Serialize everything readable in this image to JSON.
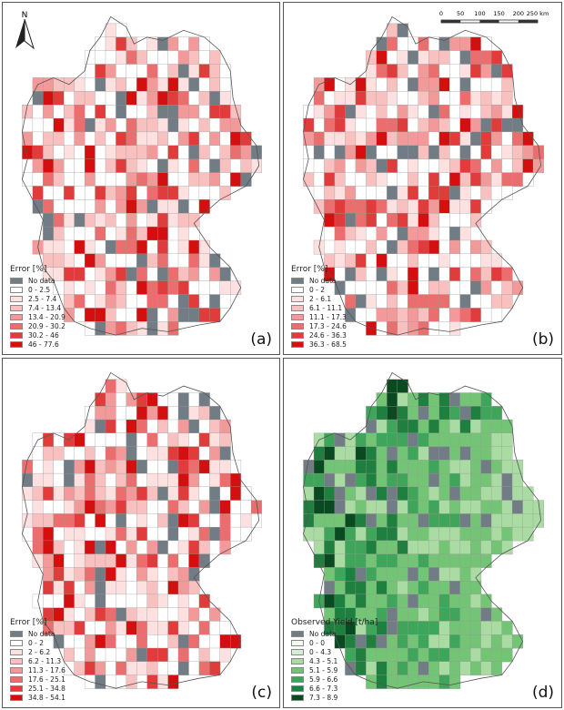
{
  "panels": [
    {
      "label": "(a)",
      "legend_title": "Error [%]",
      "legend": [
        {
          "label": "No data",
          "color": "#727c84"
        },
        {
          "label": "0 - 2.5",
          "color": "#ffffff"
        },
        {
          "label": "2.5 - 7.4",
          "color": "#fde0e0"
        },
        {
          "label": "7.4 - 13.4",
          "color": "#f9c0c0"
        },
        {
          "label": "13.4 - 20.9",
          "color": "#f29a9a"
        },
        {
          "label": "20.9 - 30.2",
          "color": "#ea6e6e"
        },
        {
          "label": "30.2 - 46",
          "color": "#e03c3c"
        },
        {
          "label": "46 - 77.6",
          "color": "#d40f0f"
        }
      ]
    },
    {
      "label": "(b)",
      "legend_title": "Error [%]",
      "legend": [
        {
          "label": "No data",
          "color": "#727c84"
        },
        {
          "label": "0 - 2",
          "color": "#ffffff"
        },
        {
          "label": "2 - 6.1",
          "color": "#fde0e0"
        },
        {
          "label": "6.1 - 11.1",
          "color": "#f9c0c0"
        },
        {
          "label": "11.1 - 17.3",
          "color": "#f29a9a"
        },
        {
          "label": "17.3 - 24.6",
          "color": "#ea6e6e"
        },
        {
          "label": "24.6 - 36.3",
          "color": "#e03c3c"
        },
        {
          "label": "36.3 - 68.5",
          "color": "#d40f0f"
        }
      ]
    },
    {
      "label": "(c)",
      "legend_title": "Error [%]",
      "legend": [
        {
          "label": "No data",
          "color": "#727c84"
        },
        {
          "label": "0 - 2",
          "color": "#ffffff"
        },
        {
          "label": "2 - 6.2",
          "color": "#fde0e0"
        },
        {
          "label": "6.2 - 11.3",
          "color": "#f9c0c0"
        },
        {
          "label": "11.3 - 17.6",
          "color": "#f29a9a"
        },
        {
          "label": "17.6 - 25.1",
          "color": "#ea6e6e"
        },
        {
          "label": "25.1 - 34.8",
          "color": "#e03c3c"
        },
        {
          "label": "34.8 - 54.1",
          "color": "#d40f0f"
        }
      ]
    },
    {
      "label": "(d)",
      "legend_title": "Observed Yield [t/ha]",
      "legend": [
        {
          "label": "No data",
          "color": "#727c84"
        },
        {
          "label": "0 - 0",
          "color": "#f3fbf1"
        },
        {
          "label": "0 - 4.3",
          "color": "#d6efd2"
        },
        {
          "label": "4.3 - 5.1",
          "color": "#a9dba3"
        },
        {
          "label": "5.1 - 5.9",
          "color": "#74c476"
        },
        {
          "label": "5.9 - 6.6",
          "color": "#3fa55a"
        },
        {
          "label": "6.6 - 7.3",
          "color": "#1f7f3e"
        },
        {
          "label": "7.3 - 8.9",
          "color": "#0a4a20"
        }
      ]
    }
  ],
  "north_arrow": {
    "label": "N"
  },
  "scale_bar": {
    "ticks": [
      "0",
      "50",
      "100",
      "150",
      "200",
      "250 km"
    ]
  }
}
